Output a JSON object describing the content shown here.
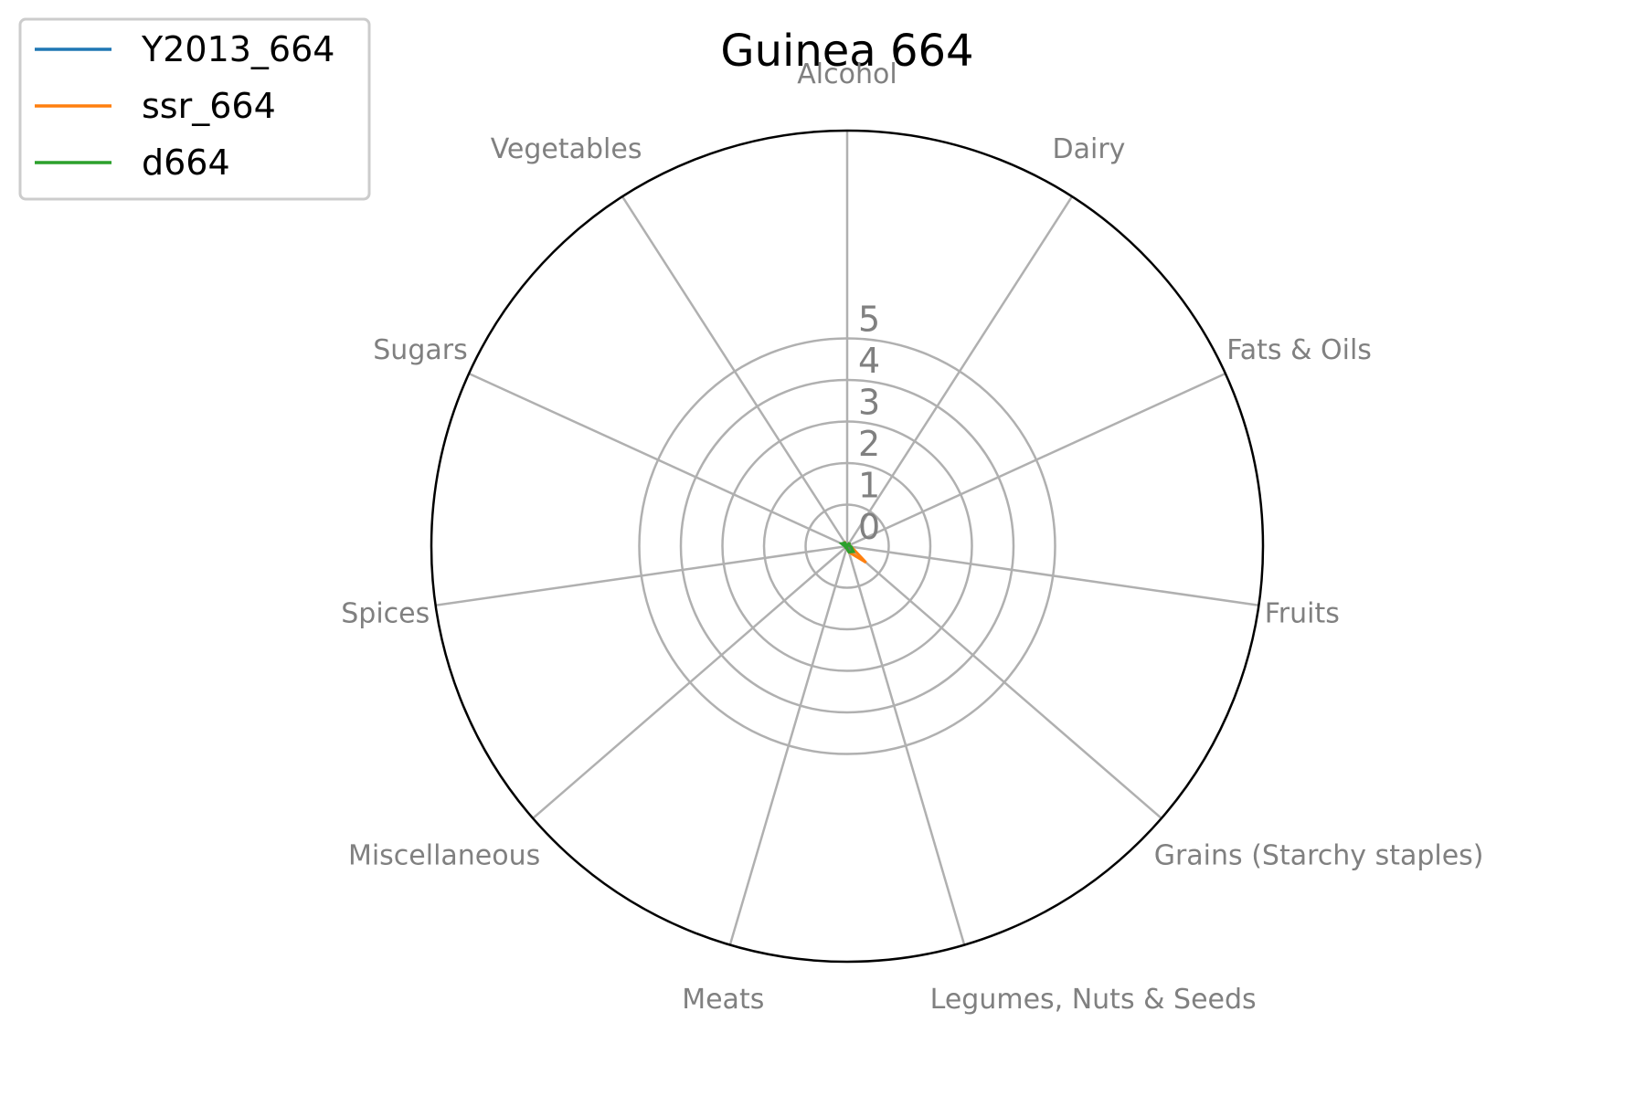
{
  "chart_data": {
    "type": "radar",
    "title": "Guinea 664",
    "categories": [
      "Alcohol",
      "Dairy",
      "Fats & Oils",
      "Fruits",
      "Grains (Starchy staples)",
      "Legumes, Nuts & Seeds",
      "Meats",
      "Miscellaneous",
      "Spices",
      "Sugars",
      "Vegetables"
    ],
    "radial_ticks": [
      "0",
      "1",
      "2",
      "3",
      "4",
      "5"
    ],
    "rlim": [
      0,
      10
    ],
    "grid": true,
    "legend_position": "top-left",
    "series": [
      {
        "name": "Y2013_664",
        "color": "#1f77b4",
        "values": [
          0.0,
          0.0,
          0.0,
          0.05,
          0.15,
          0.05,
          0.0,
          0.0,
          0.0,
          0.0,
          0.0
        ]
      },
      {
        "name": "ssr_664",
        "color": "#ff7f0e",
        "values": [
          0.0,
          0.1,
          0.05,
          0.1,
          0.6,
          0.15,
          0.05,
          0.05,
          0.05,
          0.1,
          0.1
        ]
      },
      {
        "name": "d664",
        "color": "#2ca02c",
        "values": [
          0.0,
          0.1,
          0.05,
          0.1,
          0.2,
          0.15,
          0.05,
          0.05,
          0.05,
          0.15,
          0.1
        ]
      }
    ]
  }
}
